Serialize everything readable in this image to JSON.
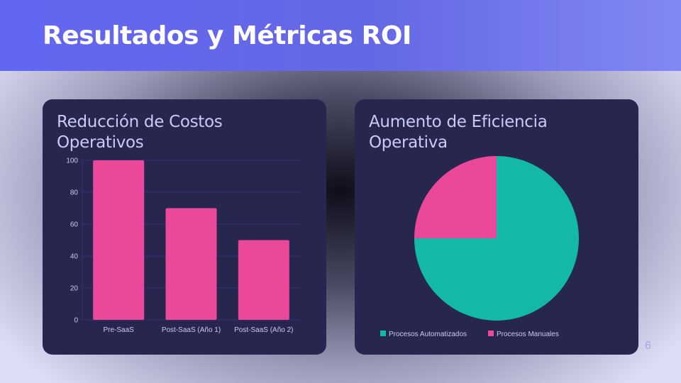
{
  "slide": {
    "title": "Resultados y Métricas ROI",
    "page_number": "6"
  },
  "colors": {
    "header_start": "#6366f1",
    "header_end": "#8187f3",
    "card_bg": "#27264f",
    "bar_color": "#ec4899",
    "automated_color": "#14b8a6",
    "manual_color": "#ec4899",
    "card_title_color": "#c7cbf7",
    "axis_text_color": "#c7cbf7"
  },
  "cards": {
    "costs": {
      "title": "Reducción de Costos Operativos"
    },
    "efficiency": {
      "title": "Aumento de Eficiencia Operativa"
    }
  },
  "chart_data": [
    {
      "type": "bar",
      "title": "Reducción de Costos Operativos",
      "categories": [
        "Pre-SaaS",
        "Post-SaaS (Año 1)",
        "Post-SaaS (Año 2)"
      ],
      "values": [
        100,
        70,
        50
      ],
      "xlabel": "",
      "ylabel": "",
      "ylim": [
        0,
        100
      ],
      "yticks": [
        "0",
        "20",
        "40",
        "60",
        "80",
        "100"
      ],
      "grid": true,
      "legend": "none",
      "color": "#ec4899"
    },
    {
      "type": "pie",
      "title": "Aumento de Eficiencia Operativa",
      "categories": [
        "Procesos Automatizados",
        "Procesos Manuales"
      ],
      "values": [
        75,
        25
      ],
      "colors": [
        "#14b8a6",
        "#ec4899"
      ],
      "legend_position": "bottom",
      "legend": [
        "Procesos Automatizados",
        "Procesos Manuales"
      ]
    }
  ]
}
